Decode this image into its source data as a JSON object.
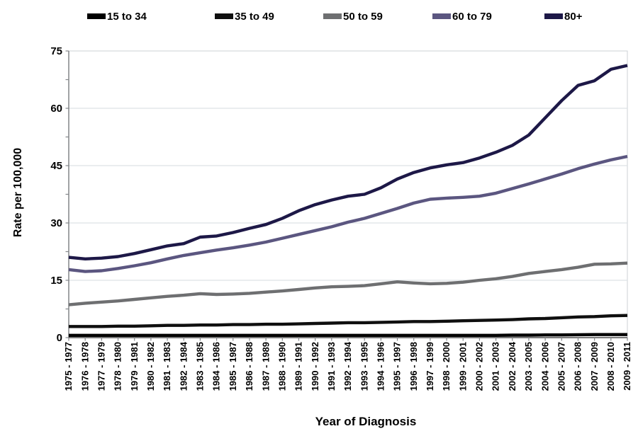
{
  "chart_data": {
    "type": "line",
    "title": "",
    "xlabel": "Year of Diagnosis",
    "ylabel": "Rate per 100,000",
    "ylim": [
      0,
      75
    ],
    "yticks": [
      0,
      15,
      30,
      45,
      60,
      75
    ],
    "minor_ytick_step": 7.5,
    "grid": "horizontal-major",
    "legend_position": "top",
    "categories": [
      "1975 - 1977",
      "1976 - 1978",
      "1977 - 1979",
      "1978 - 1980",
      "1979 - 1981",
      "1980 - 1982",
      "1981 - 1983",
      "1982 - 1984",
      "1983 - 1985",
      "1984 - 1986",
      "1985 - 1987",
      "1986 - 1988",
      "1987 - 1989",
      "1988 - 1990",
      "1989 - 1991",
      "1990 - 1992",
      "1991 - 1993",
      "1992 - 1994",
      "1993 - 1995",
      "1994 - 1996",
      "1995 - 1997",
      "1996 - 1998",
      "1997 - 1999",
      "1998 - 2000",
      "1999 - 2001",
      "2000 - 2002",
      "2001 - 2003",
      "2002 - 2004",
      "2003 - 2005",
      "2004 - 2006",
      "2005 - 2007",
      "2006 - 2008",
      "2007 - 2009",
      "2008 - 2010",
      "2009 - 2011"
    ],
    "series": [
      {
        "name": "15 to 34",
        "color": "#000000",
        "values": [
          0.6,
          0.6,
          0.6,
          0.6,
          0.6,
          0.6,
          0.6,
          0.6,
          0.6,
          0.6,
          0.6,
          0.6,
          0.6,
          0.6,
          0.6,
          0.6,
          0.6,
          0.6,
          0.6,
          0.6,
          0.6,
          0.6,
          0.6,
          0.6,
          0.6,
          0.6,
          0.6,
          0.65,
          0.65,
          0.7,
          0.7,
          0.75,
          0.8,
          0.8,
          0.8
        ]
      },
      {
        "name": "35 to 49",
        "color": "#0f0f0f",
        "values": [
          2.9,
          2.9,
          2.9,
          3.0,
          3.0,
          3.1,
          3.2,
          3.2,
          3.3,
          3.3,
          3.4,
          3.4,
          3.5,
          3.5,
          3.6,
          3.7,
          3.8,
          3.9,
          3.9,
          4.0,
          4.1,
          4.2,
          4.2,
          4.3,
          4.4,
          4.5,
          4.6,
          4.7,
          4.9,
          5.0,
          5.2,
          5.4,
          5.5,
          5.7,
          5.8
        ]
      },
      {
        "name": "50 to 59",
        "color": "#6e6f71",
        "values": [
          8.6,
          9.0,
          9.3,
          9.6,
          10.0,
          10.4,
          10.8,
          11.1,
          11.5,
          11.3,
          11.4,
          11.6,
          11.9,
          12.2,
          12.6,
          13.0,
          13.3,
          13.4,
          13.6,
          14.1,
          14.6,
          14.3,
          14.1,
          14.2,
          14.5,
          15.0,
          15.4,
          16.0,
          16.8,
          17.3,
          17.8,
          18.4,
          19.2,
          19.3,
          19.5
        ]
      },
      {
        "name": "60 to 79",
        "color": "#5b5680",
        "values": [
          17.8,
          17.3,
          17.5,
          18.1,
          18.8,
          19.6,
          20.6,
          21.5,
          22.2,
          22.9,
          23.5,
          24.2,
          25.0,
          26.0,
          27.0,
          28.0,
          29.0,
          30.2,
          31.2,
          32.5,
          33.8,
          35.2,
          36.2,
          36.5,
          36.7,
          37.0,
          37.8,
          39.0,
          40.2,
          41.5,
          42.8,
          44.2,
          45.4,
          46.5,
          47.4
        ]
      },
      {
        "name": "80+",
        "color": "#1d1847",
        "values": [
          21.0,
          20.6,
          20.8,
          21.2,
          22.0,
          23.0,
          24.0,
          24.6,
          26.3,
          26.6,
          27.5,
          28.6,
          29.6,
          31.2,
          33.2,
          34.8,
          36.0,
          37.0,
          37.5,
          39.2,
          41.5,
          43.2,
          44.4,
          45.2,
          45.8,
          47.0,
          48.5,
          50.3,
          53.0,
          57.5,
          62.0,
          66.0,
          67.2,
          70.2,
          71.2
        ]
      }
    ],
    "style": {
      "background": "#ffffff",
      "grid_color": "#dde2e5",
      "border_color": "#cdd2d6",
      "axis_color": "#6f7275",
      "bottom_axis_color": "#2a2a2a",
      "tick_color": "#84878a",
      "text_color": "#000000",
      "line_width": 4.4
    }
  }
}
